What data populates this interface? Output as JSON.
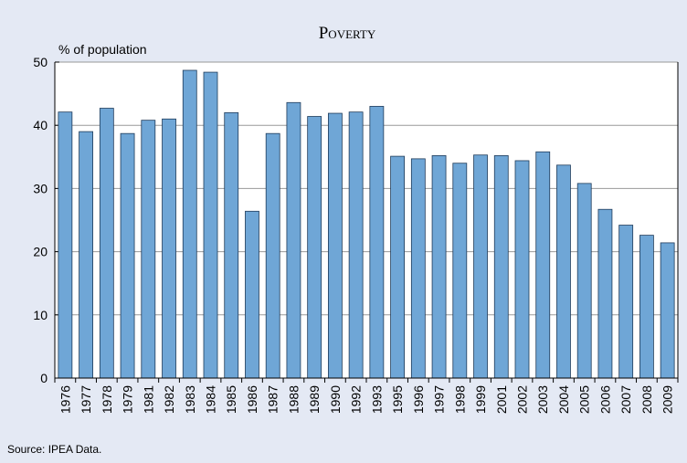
{
  "chart_data": {
    "type": "bar",
    "title": "Poverty",
    "y_label": "% of population",
    "source": "Source: IPEA Data.",
    "categories": [
      "1976",
      "1977",
      "1978",
      "1979",
      "1981",
      "1982",
      "1983",
      "1984",
      "1985",
      "1986",
      "1987",
      "1988",
      "1989",
      "1990",
      "1992",
      "1993",
      "1995",
      "1996",
      "1997",
      "1998",
      "1999",
      "2001",
      "2002",
      "2003",
      "2004",
      "2005",
      "2006",
      "2007",
      "2008",
      "2009"
    ],
    "values": [
      42.1,
      39.0,
      42.7,
      38.7,
      40.8,
      41.0,
      48.7,
      48.4,
      42.0,
      26.4,
      38.7,
      43.6,
      41.4,
      41.9,
      42.1,
      43.0,
      35.1,
      34.7,
      35.2,
      34.0,
      35.3,
      35.2,
      34.4,
      35.8,
      33.7,
      30.8,
      26.7,
      24.2,
      22.6,
      21.4
    ],
    "color": "#6fa6d6",
    "ylim": [
      0,
      50
    ],
    "yticks": [
      0,
      10,
      20,
      30,
      40,
      50
    ],
    "grid": true
  }
}
